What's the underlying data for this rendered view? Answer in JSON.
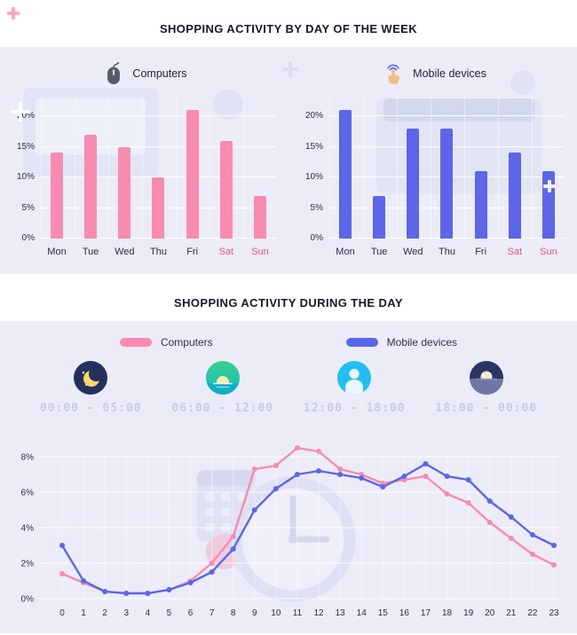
{
  "colors": {
    "panel_bg": "#ebecf8",
    "computers": "#f98bb0",
    "mobile": "#5b67e8",
    "weekend_label": "#f4517c",
    "axis_label": "#2c2c45",
    "title": "#17172b",
    "digital_text": "#c9ccdf",
    "grid": "#ffffff"
  },
  "week_section": {
    "title": "SHOPPING ACTIVITY BY DAY OF THE WEEK",
    "charts": [
      {
        "icon": "mouse-icon",
        "label": "Computers"
      },
      {
        "icon": "tap-icon",
        "label": "Mobile devices"
      }
    ]
  },
  "day_section": {
    "title": "SHOPPING ACTIVITY DURING THE DAY",
    "legend": [
      {
        "label": "Computers",
        "color": "#f98bb0"
      },
      {
        "label": "Mobile devices",
        "color": "#5b67e8"
      }
    ],
    "periods": [
      {
        "icon": "night-moon-icon",
        "range": "00:00 - 05:00"
      },
      {
        "icon": "morning-sunrise-icon",
        "range": "06:00 - 12:00"
      },
      {
        "icon": "afternoon-person-icon",
        "range": "12:00 - 18:00"
      },
      {
        "icon": "evening-moonset-icon",
        "range": "18:00 - 00:00"
      }
    ]
  },
  "chart_data": [
    {
      "type": "bar",
      "title": "SHOPPING ACTIVITY BY DAY OF THE WEEK",
      "layout": "two side-by-side single-series bar charts, one per series",
      "categories": [
        "Mon",
        "Tue",
        "Wed",
        "Thu",
        "Fri",
        "Sat",
        "Sun"
      ],
      "weekend": [
        "Sat",
        "Sun"
      ],
      "series": [
        {
          "name": "Computers",
          "color": "#f98bb0",
          "values": [
            14,
            17,
            15,
            10,
            21,
            16,
            7
          ]
        },
        {
          "name": "Mobile devices",
          "color": "#5b67e8",
          "values": [
            21,
            7,
            18,
            18,
            11,
            14,
            11
          ]
        }
      ],
      "ylim": [
        0,
        20
      ],
      "y_ticks": [
        0,
        5,
        10,
        15,
        20
      ],
      "y_suffix": "%",
      "grid": true
    },
    {
      "type": "line",
      "title": "SHOPPING ACTIVITY DURING THE DAY",
      "x": [
        0,
        1,
        2,
        3,
        4,
        5,
        6,
        7,
        8,
        9,
        10,
        11,
        12,
        13,
        14,
        15,
        16,
        17,
        18,
        19,
        20,
        21,
        22,
        23
      ],
      "series": [
        {
          "name": "Computers",
          "color": "#f98bb0",
          "values": [
            1.4,
            0.9,
            0.4,
            0.3,
            0.3,
            0.5,
            1.0,
            2.0,
            3.5,
            7.3,
            7.5,
            8.5,
            8.3,
            7.3,
            7.0,
            6.5,
            6.7,
            6.9,
            5.9,
            5.4,
            4.3,
            3.4,
            2.5,
            1.9
          ]
        },
        {
          "name": "Mobile devices",
          "color": "#5b67e8",
          "values": [
            3.0,
            1.0,
            0.4,
            0.3,
            0.3,
            0.5,
            0.9,
            1.5,
            2.8,
            5.0,
            6.2,
            7.0,
            7.2,
            7.0,
            6.8,
            6.3,
            6.9,
            7.6,
            6.9,
            6.7,
            5.5,
            4.6,
            3.6,
            3.0
          ]
        }
      ],
      "ylim": [
        0,
        8
      ],
      "y_ticks": [
        0,
        2,
        4,
        6,
        8
      ],
      "y_suffix": "%",
      "legend_position": "top",
      "grid": true
    }
  ]
}
